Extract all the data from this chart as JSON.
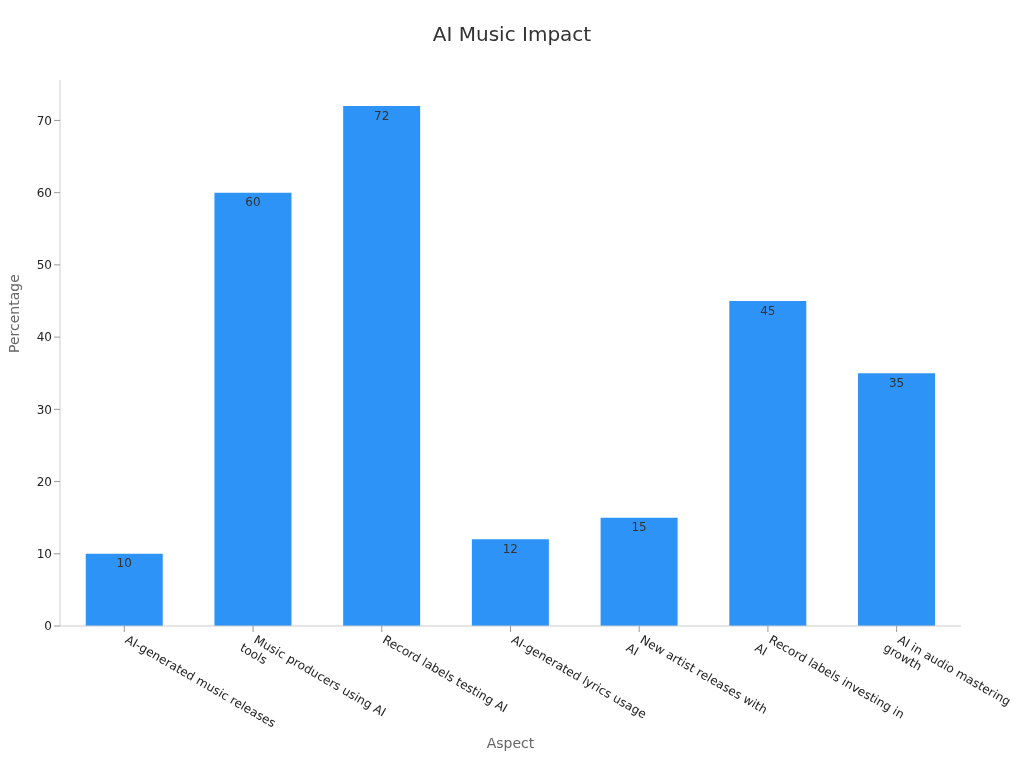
{
  "chart_data": {
    "type": "bar",
    "title": "AI Music Impact",
    "xlabel": "Aspect",
    "ylabel": "Percentage",
    "categories": [
      "AI-generated music releases",
      "Music producers using AI\ntools",
      "Record labels testing AI",
      "AI-generated lyrics usage",
      "New artist releases with\nAI",
      "Record labels investing in\nAI",
      "AI in audio mastering\ngrowth"
    ],
    "values": [
      10,
      60,
      72,
      12,
      15,
      45,
      35
    ],
    "color": "#2e93f7",
    "ylim": [
      0,
      75.6
    ],
    "yticks": [
      0,
      10,
      20,
      30,
      40,
      50,
      60,
      70
    ],
    "data_labels": true,
    "grid": false,
    "legend": false
  }
}
